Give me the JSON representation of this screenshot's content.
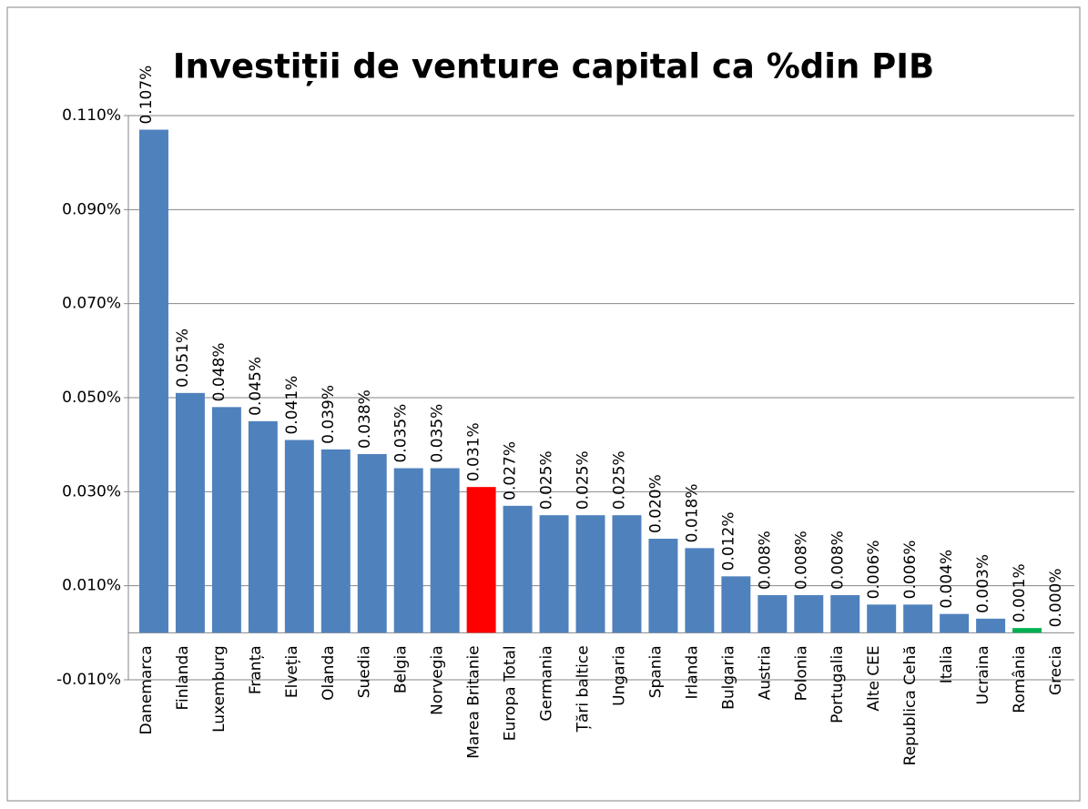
{
  "chart_data": {
    "type": "bar",
    "title": "Investiții de venture capital ca %din PIB",
    "categories": [
      "Danemarca",
      "Finlanda",
      "Luxemburg",
      "Franța",
      "Elveția",
      "Olanda",
      "Suedia",
      "Belgia",
      "Norvegia",
      "Marea Britanie",
      "Europa Total",
      "Germania",
      "Țări baltice",
      "Ungaria",
      "Spania",
      "Irlanda",
      "Bulgaria",
      "Austria",
      "Polonia",
      "Portugalia",
      "Alte CEE",
      "Republica Cehă",
      "Italia",
      "Ucraina",
      "România",
      "Grecia"
    ],
    "values": [
      0.107,
      0.051,
      0.048,
      0.045,
      0.041,
      0.039,
      0.038,
      0.035,
      0.035,
      0.031,
      0.027,
      0.025,
      0.025,
      0.025,
      0.02,
      0.018,
      0.012,
      0.008,
      0.008,
      0.008,
      0.006,
      0.006,
      0.004,
      0.003,
      0.001,
      0.0
    ],
    "value_labels": [
      "0.107%",
      "0.051%",
      "0.048%",
      "0.045%",
      "0.041%",
      "0.039%",
      "0.038%",
      "0.035%",
      "0.035%",
      "0.031%",
      "0.027%",
      "0.025%",
      "0.025%",
      "0.025%",
      "0.020%",
      "0.018%",
      "0.012%",
      "0.008%",
      "0.008%",
      "0.008%",
      "0.006%",
      "0.006%",
      "0.004%",
      "0.003%",
      "0.001%",
      "0.000%"
    ],
    "colors": [
      "#4f81bd",
      "#4f81bd",
      "#4f81bd",
      "#4f81bd",
      "#4f81bd",
      "#4f81bd",
      "#4f81bd",
      "#4f81bd",
      "#4f81bd",
      "#ff0000",
      "#4f81bd",
      "#4f81bd",
      "#4f81bd",
      "#4f81bd",
      "#4f81bd",
      "#4f81bd",
      "#4f81bd",
      "#4f81bd",
      "#4f81bd",
      "#4f81bd",
      "#4f81bd",
      "#4f81bd",
      "#4f81bd",
      "#4f81bd",
      "#00b050",
      "#4f81bd"
    ],
    "ylim": [
      -0.01,
      0.11
    ],
    "yticks": [
      {
        "value": -0.01,
        "label": "-0.010%"
      },
      {
        "value": 0.01,
        "label": "0.010%"
      },
      {
        "value": 0.03,
        "label": "0.030%"
      },
      {
        "value": 0.05,
        "label": "0.050%"
      },
      {
        "value": 0.07,
        "label": "0.070%"
      },
      {
        "value": 0.09,
        "label": "0.090%"
      },
      {
        "value": 0.11,
        "label": "0.110%"
      }
    ],
    "grid": true
  }
}
